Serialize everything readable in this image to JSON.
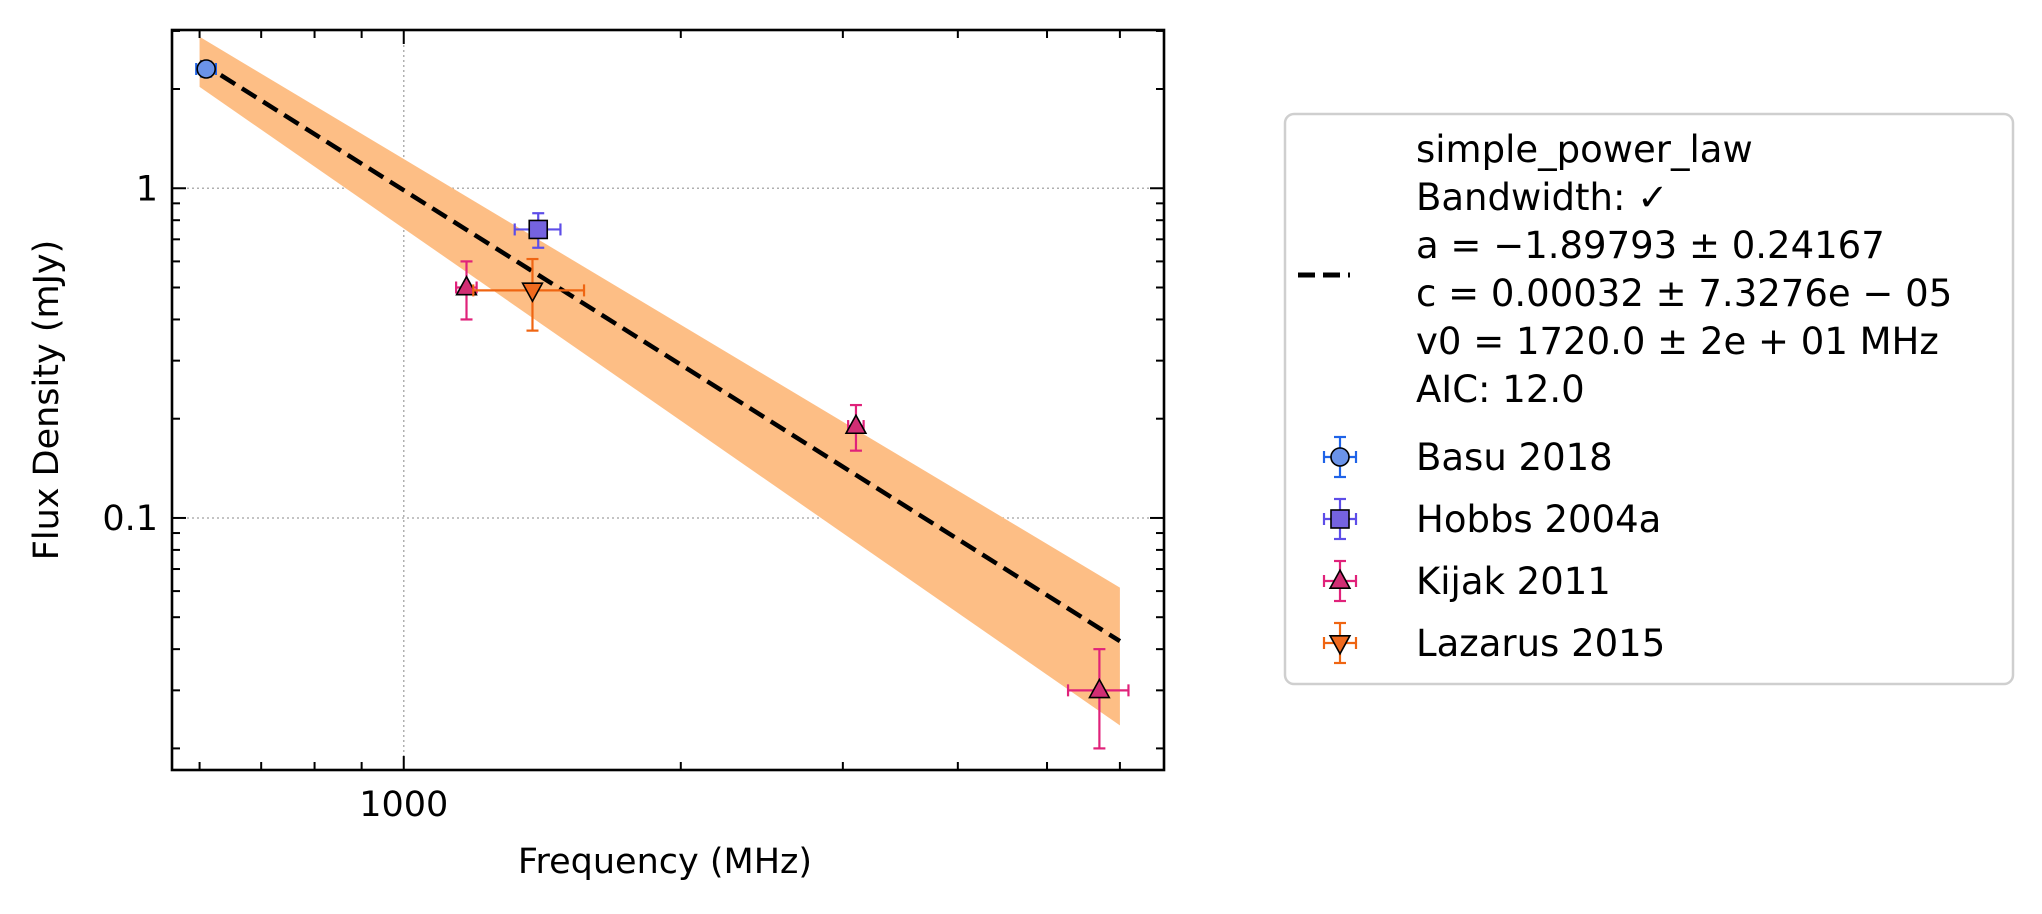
{
  "chart_data": {
    "type": "scatter",
    "title": "",
    "xlabel": "Frequency (MHz)",
    "ylabel": "Flux Density (mJy)",
    "xscale": "log",
    "yscale": "log",
    "xlim": [
      560,
      6700
    ],
    "ylim": [
      0.0172,
      3.02
    ],
    "grid": true,
    "legend_position": "outside-right",
    "x_tick_labels": [
      {
        "value": 1000,
        "label": "1000"
      }
    ],
    "y_tick_labels": [
      {
        "value": 1,
        "label": "1"
      },
      {
        "value": 0.1,
        "label": "0.1"
      }
    ],
    "fit": {
      "model": "simple_power_law",
      "legend_lines": [
        "simple_power_law",
        "Bandwidth: ✓",
        "a = −1.89793 ± 0.24167",
        "c = 0.00032 ± 7.3276e − 05",
        "v0 = 1720.0 ± 2e + 01 MHz",
        "AIC: 12.0"
      ],
      "a": -1.89793,
      "a_err": 0.24167,
      "c": 0.00032,
      "c_err": 7.3276e-05,
      "v0": 1720.0,
      "x_range": [
        600,
        6000
      ],
      "y_start": 2.42,
      "y_end": 0.0423,
      "band_start": [
        2.03,
        2.88
      ],
      "band_end": [
        0.0235,
        0.0615
      ],
      "line_color": "#000000",
      "band_color": "#fdbe85"
    },
    "series": [
      {
        "name": "Basu 2018",
        "marker": "circle",
        "color": "#1f63e8",
        "fill": "#6b93e8",
        "points": [
          {
            "x": 610,
            "y": 2.3,
            "xerr": 15,
            "yerr_lo": 0.12,
            "yerr_hi": 0.12
          }
        ]
      },
      {
        "name": "Hobbs 2004a",
        "marker": "square",
        "color": "#5d4de8",
        "fill": "#7563e0",
        "points": [
          {
            "x": 1400,
            "y": 0.75,
            "xerr": 80,
            "yerr_lo": 0.09,
            "yerr_hi": 0.09
          }
        ]
      },
      {
        "name": "Kijak 2011",
        "marker": "triangle-up",
        "color": "#e0227a",
        "fill": "#d12e74",
        "points": [
          {
            "x": 1170,
            "y": 0.5,
            "xerr": 30,
            "yerr_lo": 0.1,
            "yerr_hi": 0.1
          },
          {
            "x": 3100,
            "y": 0.19,
            "xerr": 60,
            "yerr_lo": 0.03,
            "yerr_hi": 0.03
          },
          {
            "x": 5700,
            "y": 0.03,
            "xerr": 430,
            "yerr_lo": 0.01,
            "yerr_hi": 0.01
          }
        ]
      },
      {
        "name": "Lazarus 2015",
        "marker": "triangle-down",
        "color": "#ef6512",
        "fill": "#f06a1e",
        "points": [
          {
            "x": 1380,
            "y": 0.49,
            "xerr": 190,
            "yerr_lo": 0.12,
            "yerr_hi": 0.12
          }
        ]
      }
    ]
  }
}
